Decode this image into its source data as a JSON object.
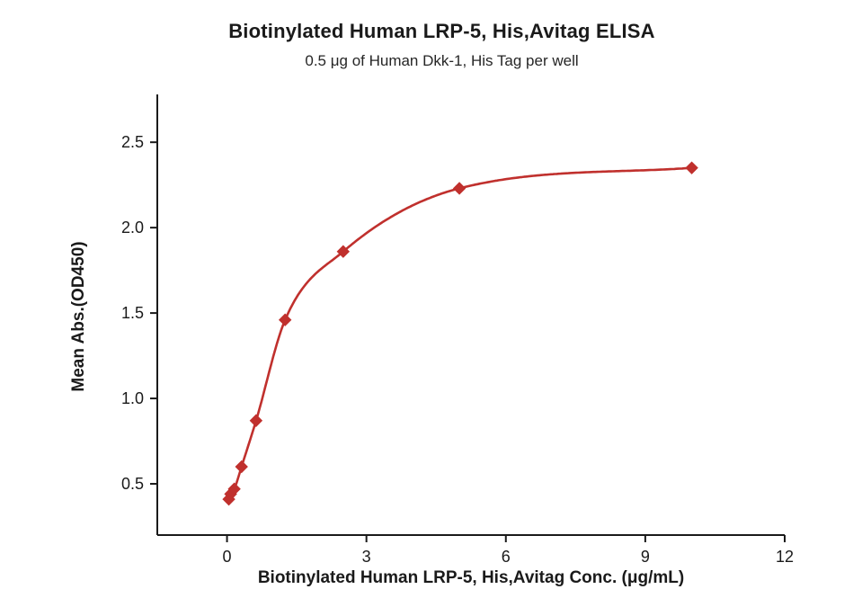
{
  "chart_data": {
    "type": "scatter",
    "title": "Biotinylated Human LRP-5, His,Avitag ELISA",
    "subtitle": "0.5 μg of Human Dkk-1, His Tag per well",
    "xlabel": "Biotinylated Human LRP-5, His,Avitag Conc. (μg/mL)",
    "ylabel": "Mean Abs.(OD450)",
    "x": [
      0.0391,
      0.0781,
      0.1563,
      0.3125,
      0.625,
      1.25,
      2.5,
      5,
      10
    ],
    "y": [
      0.41,
      0.44,
      0.47,
      0.6,
      0.87,
      1.46,
      1.86,
      2.23,
      2.35
    ],
    "xlim": [
      -1.5,
      12
    ],
    "ylim": [
      0.2,
      2.78
    ],
    "xticks": [
      0,
      3,
      6,
      9,
      12
    ],
    "xticklabels": [
      "0",
      "3",
      "6",
      "9",
      "12"
    ],
    "yticks": [
      0.5,
      1.0,
      1.5,
      2.0,
      2.5
    ],
    "yticklabels": [
      "0.5",
      "1.0",
      "1.5",
      "2.0",
      "2.5"
    ],
    "marker": "diamond",
    "series_color": "#c0302d",
    "axis_color": "#1a1a1a",
    "grid": false,
    "legend": "none",
    "curve": "smooth fit through points"
  }
}
